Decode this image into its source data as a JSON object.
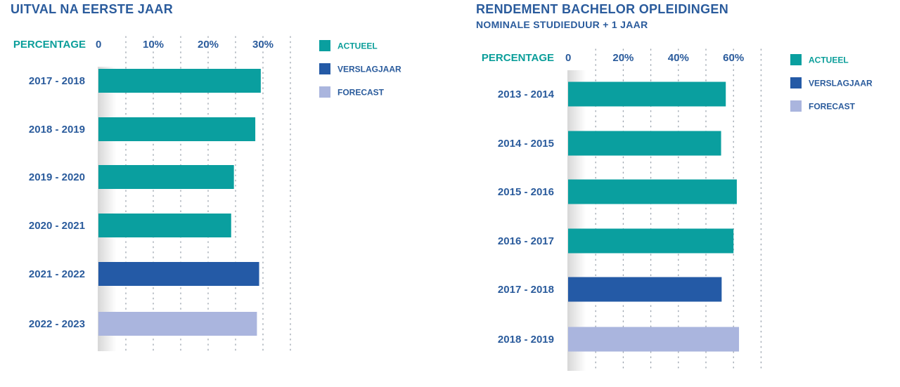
{
  "colors": {
    "actueel": "#0a9f9f",
    "verslagjaar": "#245aa6",
    "forecast": "#aab5de",
    "text": "#2a5b9c",
    "accent": "#0b9e9a"
  },
  "chart_data": [
    {
      "type": "bar",
      "orientation": "horizontal",
      "title": "UITVAL NA EERSTE JAAR",
      "subtitle": "",
      "axis_title": "PERCENTAGE",
      "xlim": [
        0,
        35
      ],
      "ticks": [
        0,
        10,
        20,
        30
      ],
      "tick_labels": [
        "0",
        "10%",
        "20%",
        "30%"
      ],
      "grid": true,
      "legend_position": "right",
      "legend": [
        {
          "key": "actueel",
          "label": "ACTUEEL"
        },
        {
          "key": "verslagjaar",
          "label": "VERSLAGJAAR"
        },
        {
          "key": "forecast",
          "label": "FORECAST"
        }
      ],
      "categories": [
        "2017 - 2018",
        "2018 - 2019",
        "2019 - 2020",
        "2020 - 2021",
        "2021 - 2022",
        "2022 - 2023"
      ],
      "values": [
        29.6,
        28.6,
        24.7,
        24.2,
        29.3,
        28.9
      ],
      "series_keys": [
        "actueel",
        "actueel",
        "actueel",
        "actueel",
        "verslagjaar",
        "forecast"
      ]
    },
    {
      "type": "bar",
      "orientation": "horizontal",
      "title": "RENDEMENT BACHELOR OPLEIDINGEN",
      "subtitle": "NOMINALE STUDIEDUUR + 1 JAAR",
      "axis_title": "PERCENTAGE",
      "xlim": [
        0,
        70
      ],
      "ticks": [
        0,
        20,
        40,
        60
      ],
      "tick_labels": [
        "0",
        "20%",
        "40%",
        "60%"
      ],
      "grid": true,
      "legend_position": "right",
      "legend": [
        {
          "key": "actueel",
          "label": "ACTUEEL"
        },
        {
          "key": "verslagjaar",
          "label": "VERSLAGJAAR"
        },
        {
          "key": "forecast",
          "label": "FORECAST"
        }
      ],
      "categories": [
        "2013 - 2014",
        "2014 - 2015",
        "2015 - 2016",
        "2016 - 2017",
        "2017 - 2018",
        "2018 - 2019"
      ],
      "values": [
        57.2,
        55.5,
        61.2,
        60.0,
        55.7,
        62.0
      ],
      "series_keys": [
        "actueel",
        "actueel",
        "actueel",
        "actueel",
        "verslagjaar",
        "forecast"
      ]
    }
  ]
}
